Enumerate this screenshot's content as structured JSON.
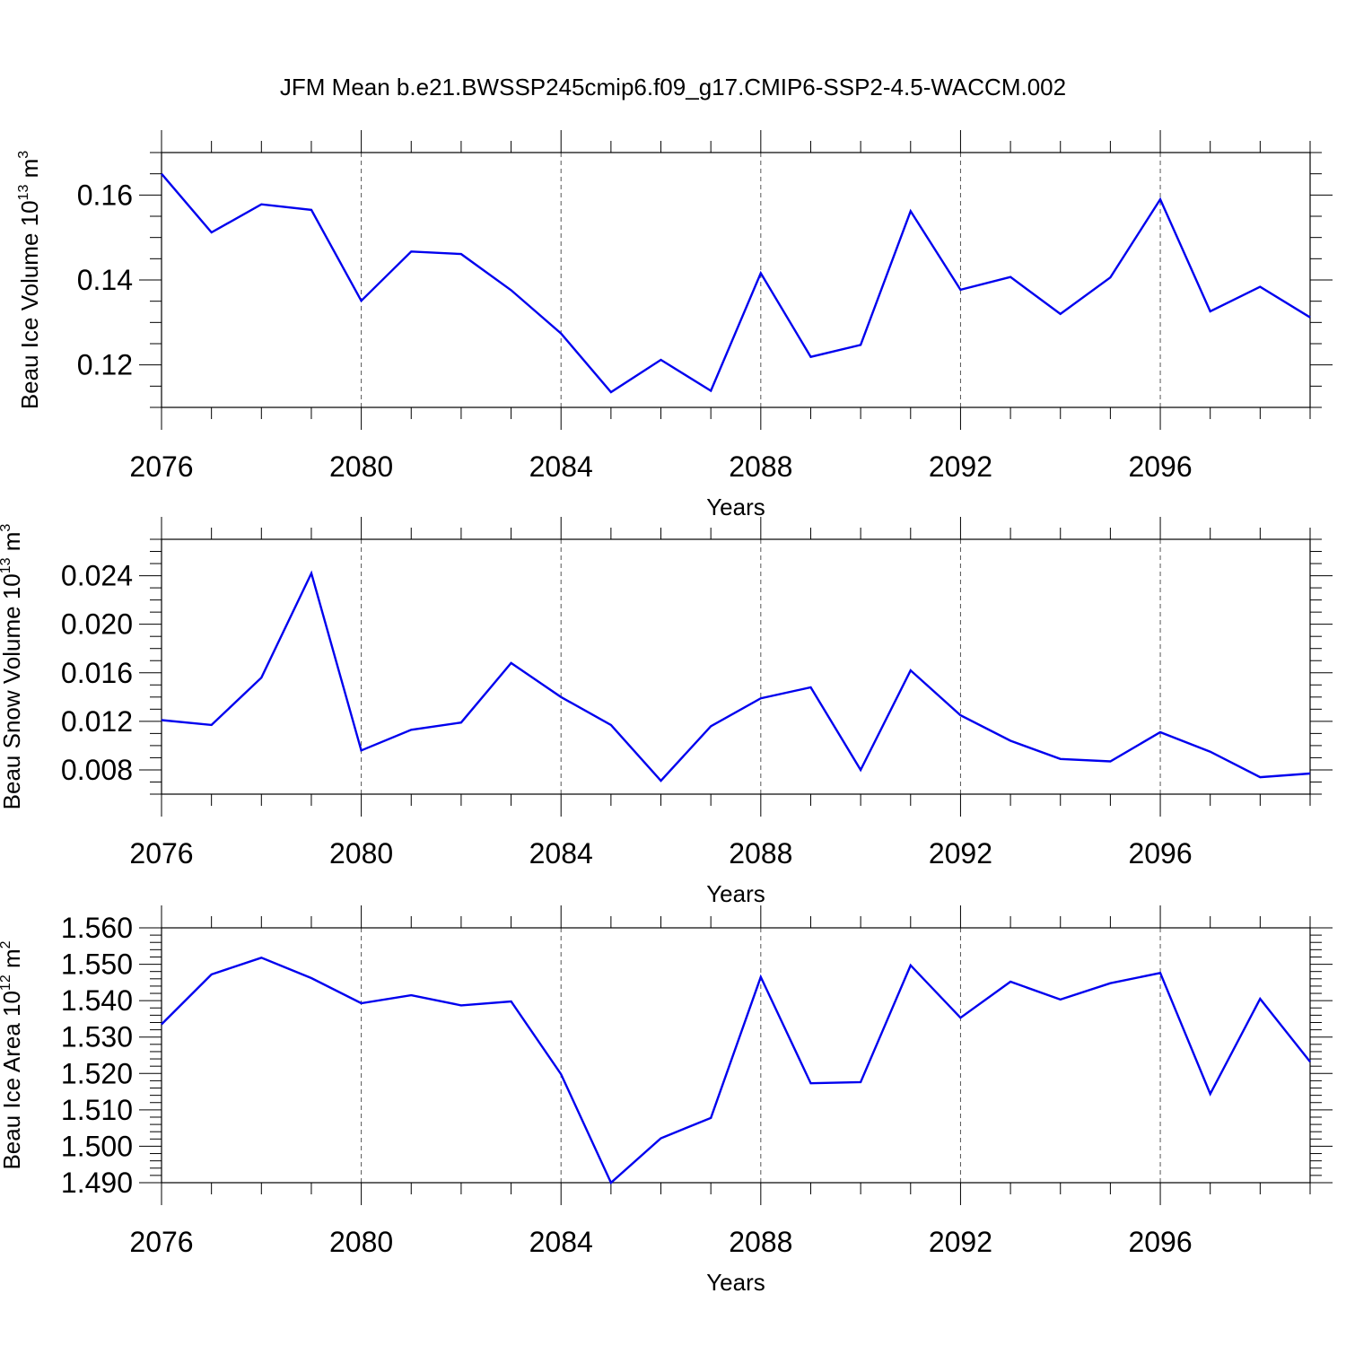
{
  "figure_title": "JFM Mean b.e21.BWSSP245cmip6.f09_g17.CMIP6-SSP2-4.5-WACCM.002",
  "line_color": "#0000ee",
  "chart_data": [
    {
      "type": "line",
      "name": "ice-volume",
      "ylabel_main": "Beau Ice Volume 10",
      "ylabel_exp": "13",
      "ylabel_unit": " m",
      "ylabel_unit_exp": "3",
      "xlabel": "Years",
      "xlim": [
        2076,
        2099
      ],
      "ylim": [
        0.11,
        0.17
      ],
      "yticks": [
        0.12,
        0.14,
        0.16
      ],
      "ytick_labels": [
        "0.12",
        "0.14",
        "0.16"
      ],
      "yminor_step": 0.005,
      "xticks": [
        2076,
        2080,
        2084,
        2088,
        2092,
        2096
      ],
      "xtick_labels": [
        "2076",
        "2080",
        "2084",
        "2088",
        "2092",
        "2096"
      ],
      "grid_x": [
        2080,
        2084,
        2088,
        2092,
        2096
      ],
      "x": [
        2076,
        2077,
        2078,
        2079,
        2080,
        2081,
        2082,
        2083,
        2084,
        2085,
        2086,
        2087,
        2088,
        2089,
        2090,
        2091,
        2092,
        2093,
        2094,
        2095,
        2096,
        2097,
        2098,
        2099
      ],
      "values": [
        0.165,
        0.1512,
        0.1578,
        0.1565,
        0.1351,
        0.1467,
        0.1461,
        0.1376,
        0.1274,
        0.1136,
        0.1212,
        0.1139,
        0.1416,
        0.1219,
        0.1247,
        0.1562,
        0.1377,
        0.1407,
        0.132,
        0.1406,
        0.159,
        0.1326,
        0.1384,
        0.1312
      ]
    },
    {
      "type": "line",
      "name": "snow-volume",
      "ylabel_main": "Beau Snow Volume 10",
      "ylabel_exp": "13",
      "ylabel_unit": " m",
      "ylabel_unit_exp": "3",
      "xlabel": "Years",
      "xlim": [
        2076,
        2099
      ],
      "ylim": [
        0.006,
        0.027
      ],
      "yticks": [
        0.008,
        0.012,
        0.016,
        0.02,
        0.024
      ],
      "ytick_labels": [
        "0.008",
        "0.012",
        "0.016",
        "0.020",
        "0.024"
      ],
      "yminor_step": 0.001,
      "xticks": [
        2076,
        2080,
        2084,
        2088,
        2092,
        2096
      ],
      "xtick_labels": [
        "2076",
        "2080",
        "2084",
        "2088",
        "2092",
        "2096"
      ],
      "grid_x": [
        2080,
        2084,
        2088,
        2092,
        2096
      ],
      "x": [
        2076,
        2077,
        2078,
        2079,
        2080,
        2081,
        2082,
        2083,
        2084,
        2085,
        2086,
        2087,
        2088,
        2089,
        2090,
        2091,
        2092,
        2093,
        2094,
        2095,
        2096,
        2097,
        2098,
        2099
      ],
      "values": [
        0.0121,
        0.0117,
        0.0156,
        0.0242,
        0.0096,
        0.0113,
        0.0119,
        0.0168,
        0.014,
        0.0117,
        0.0071,
        0.0116,
        0.0139,
        0.0148,
        0.008,
        0.0162,
        0.0125,
        0.0104,
        0.0089,
        0.0087,
        0.0111,
        0.0095,
        0.0074,
        0.0077
      ]
    },
    {
      "type": "line",
      "name": "ice-area",
      "ylabel_main": "Beau Ice Area 10",
      "ylabel_exp": "12",
      "ylabel_unit": " m",
      "ylabel_unit_exp": "2",
      "xlabel": "Years",
      "xlim": [
        2076,
        2099
      ],
      "ylim": [
        1.49,
        1.56
      ],
      "yticks": [
        1.49,
        1.5,
        1.51,
        1.52,
        1.53,
        1.54,
        1.55,
        1.56
      ],
      "ytick_labels": [
        "1.490",
        "1.500",
        "1.510",
        "1.520",
        "1.530",
        "1.540",
        "1.550",
        "1.560"
      ],
      "yminor_step": 0.002,
      "xticks": [
        2076,
        2080,
        2084,
        2088,
        2092,
        2096
      ],
      "xtick_labels": [
        "2076",
        "2080",
        "2084",
        "2088",
        "2092",
        "2096"
      ],
      "grid_x": [
        2080,
        2084,
        2088,
        2092,
        2096
      ],
      "x": [
        2076,
        2077,
        2078,
        2079,
        2080,
        2081,
        2082,
        2083,
        2084,
        2085,
        2086,
        2087,
        2088,
        2089,
        2090,
        2091,
        2092,
        2093,
        2094,
        2095,
        2096,
        2097,
        2098,
        2099
      ],
      "values": [
        1.5335,
        1.5472,
        1.5518,
        1.5462,
        1.5393,
        1.5415,
        1.5387,
        1.5398,
        1.5198,
        1.49,
        1.5022,
        1.5078,
        1.5465,
        1.5173,
        1.5176,
        1.5497,
        1.5353,
        1.5452,
        1.5403,
        1.5448,
        1.5476,
        1.5144,
        1.5405,
        1.5232
      ]
    }
  ]
}
